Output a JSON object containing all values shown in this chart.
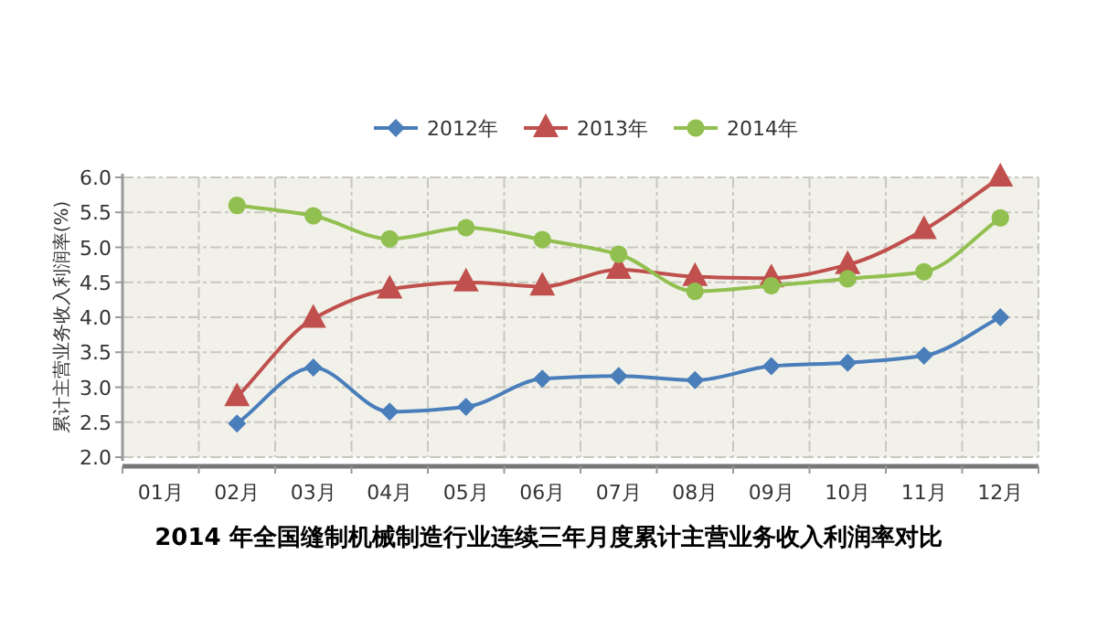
{
  "chart_data": {
    "type": "line",
    "title": "2014 年全国缝制机械制造行业连续三年月度累计主营业务收入利润率对比",
    "ylabel": "累计主营业务收入利润率(%)",
    "categories": [
      "01月",
      "02月",
      "03月",
      "04月",
      "05月",
      "06月",
      "07月",
      "08月",
      "09月",
      "10月",
      "11月",
      "12月"
    ],
    "series": [
      {
        "name": "2012年",
        "color": "#4a7ebb",
        "marker": "diamond",
        "values": [
          null,
          2.48,
          3.28,
          2.65,
          2.72,
          3.12,
          3.16,
          3.1,
          3.3,
          3.35,
          3.45,
          4.0
        ]
      },
      {
        "name": "2013年",
        "color": "#c0504d",
        "marker": "triangle",
        "values": [
          null,
          2.86,
          3.98,
          4.4,
          4.5,
          4.44,
          4.68,
          4.58,
          4.56,
          4.75,
          5.25,
          6.0
        ]
      },
      {
        "name": "2014年",
        "color": "#92c050",
        "marker": "circle",
        "values": [
          null,
          5.6,
          5.45,
          5.12,
          5.28,
          5.11,
          4.9,
          4.37,
          4.45,
          4.55,
          4.65,
          5.42
        ]
      }
    ],
    "ylim": [
      2.0,
      6.0
    ],
    "yticks": [
      {
        "value": 2,
        "label": "2.0"
      },
      2.5,
      {
        "value": 3,
        "label": "3.0"
      },
      3.5,
      {
        "value": 4,
        "label": "4.0"
      },
      4.5,
      {
        "value": 5,
        "label": "5.0"
      },
      5.5,
      {
        "value": 6,
        "label": "6.0"
      }
    ],
    "grid": true,
    "legend": "top"
  }
}
